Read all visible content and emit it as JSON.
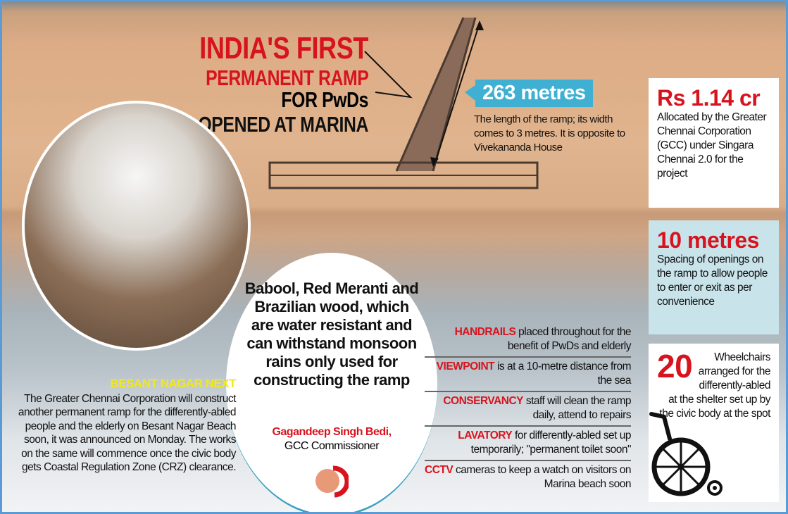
{
  "title": {
    "line1": "INDIA'S FIRST",
    "line2_red": "PERMANENT RAMP",
    "line2_black": "FOR PwDs",
    "line3": "OPENED AT MARINA"
  },
  "length": {
    "value": "263 metres",
    "description": "The length of the ramp; its width comes to 3 metres. It is opposite to Vivekananda House"
  },
  "cost": {
    "value": "Rs 1.14 cr",
    "description": "Allocated by the Greater Chennai Corporation (GCC) under Singara Chennai 2.0 for the project"
  },
  "spacing": {
    "value": "10 metres",
    "description": "Spacing of openings on the ramp to allow people to enter or exit as per convenience"
  },
  "wheelchairs": {
    "value": "20",
    "description": "Wheelchairs arranged for the differently-abled at the shelter set up by the civic body at the spot",
    "icon": "wheelchair-icon"
  },
  "quote": {
    "text": "Babool, Red Meranti and Brazilian wood, which are water resistant and can withstand monsoon rains only used for constructing the ramp",
    "author": "Gagandeep Singh Bedi,",
    "role": "GCC Commissioner"
  },
  "besant": {
    "heading": "BESANT NAGAR NEXT",
    "text": "The Greater Chennai Corporation will construct another permanent ramp for the differently-abled people and the elderly on Besant Nagar Beach soon, it was announced on Monday. The works on the same will commence once the civic body gets Coastal Regulation Zone (CRZ) clearance."
  },
  "features": [
    {
      "key": "HANDRAILS",
      "text": " placed throughout for the benefit of PwDs and elderly"
    },
    {
      "key": "VIEWPOINT",
      "text": " is at a 10-metre distance from the sea"
    },
    {
      "key": "CONSERVANCY",
      "text": " staff will clean the ramp daily, attend to repairs"
    },
    {
      "key": "LAVATORY",
      "text": " for differently-abled set up temporarily; \"permanent toilet soon\""
    },
    {
      "key": "CCTV",
      "text": " cameras to keep a watch on visitors on Marina beach soon"
    }
  ],
  "colors": {
    "accent_red": "#d7141e",
    "badge_blue": "#3fb0d2",
    "frame_blue": "#5b9bd5",
    "heading_yellow": "#f2e81a"
  }
}
